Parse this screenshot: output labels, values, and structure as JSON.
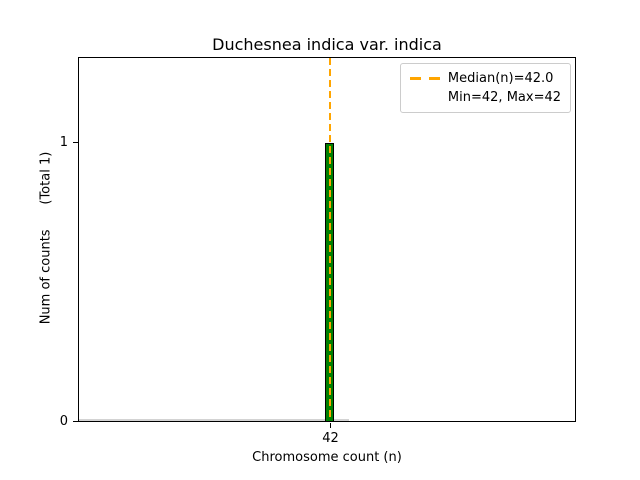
{
  "chart_data": {
    "type": "bar",
    "title": "Duchesnea indica var. indica",
    "xlabel": "Chromosome count (n)",
    "ylabel": "Num of counts      (Total 1)",
    "categories": [
      42
    ],
    "values": [
      1
    ],
    "total_counts": 1,
    "x_tick_labels": [
      "42"
    ],
    "y_tick_labels": [
      "0",
      "1"
    ],
    "ylim": [
      0,
      1.31
    ],
    "grid": false,
    "median_n": 42.0,
    "min_n": 42,
    "max_n": 42,
    "legend": {
      "position": "upper right",
      "entries": [
        {
          "label": "Median(n)=42.0",
          "marker": "orange-dashed-line"
        },
        {
          "label": "Min=42, Max=42",
          "marker": "none"
        }
      ]
    },
    "colors": {
      "bar_fill": "#008000",
      "bar_edge": "#000000",
      "median_line": "#FFA500",
      "zero_count_baseline": "#D3D3D3",
      "legend_border": "#CCCCCC",
      "text": "#000000"
    }
  }
}
